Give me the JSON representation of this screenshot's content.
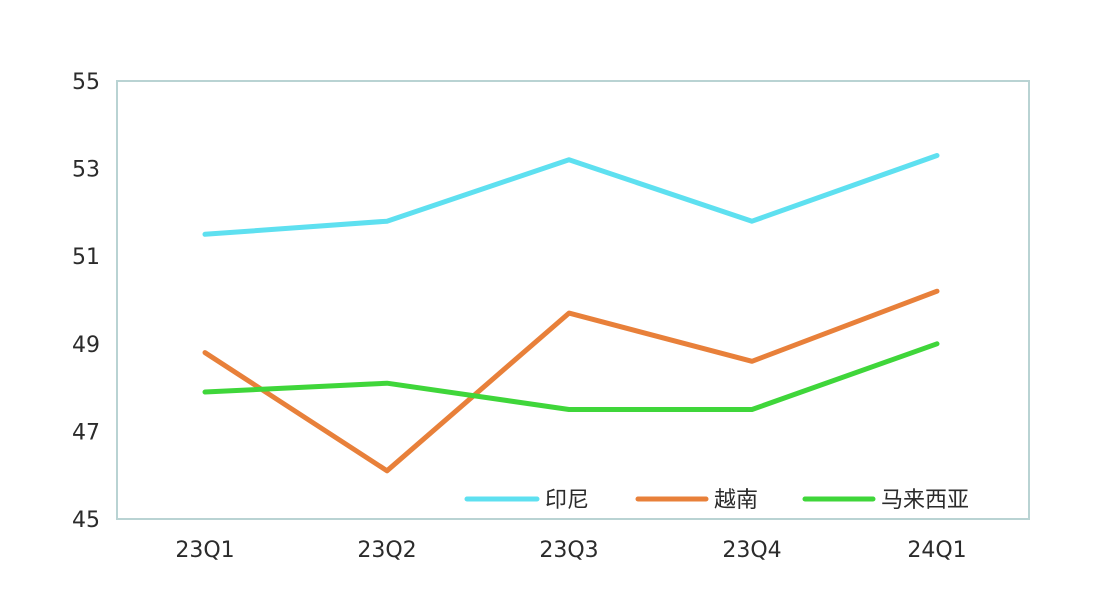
{
  "chart_data": {
    "type": "line",
    "title": "",
    "xlabel": "",
    "ylabel": "",
    "categories": [
      "23Q1",
      "23Q2",
      "23Q3",
      "23Q4",
      "24Q1"
    ],
    "y_ticks": [
      45,
      47,
      49,
      51,
      53,
      55
    ],
    "ylim": [
      45,
      55
    ],
    "grid": false,
    "legend_position": "bottom-right",
    "series": [
      {
        "name": "印尼",
        "color": "#5ee0f0",
        "values": [
          51.5,
          51.8,
          53.2,
          51.8,
          53.3
        ]
      },
      {
        "name": "越南",
        "color": "#e8803a",
        "values": [
          48.8,
          46.1,
          49.7,
          48.6,
          50.2
        ]
      },
      {
        "name": "马来西亚",
        "color": "#3fd63a",
        "values": [
          47.9,
          48.1,
          47.5,
          47.5,
          49.0
        ]
      }
    ]
  }
}
